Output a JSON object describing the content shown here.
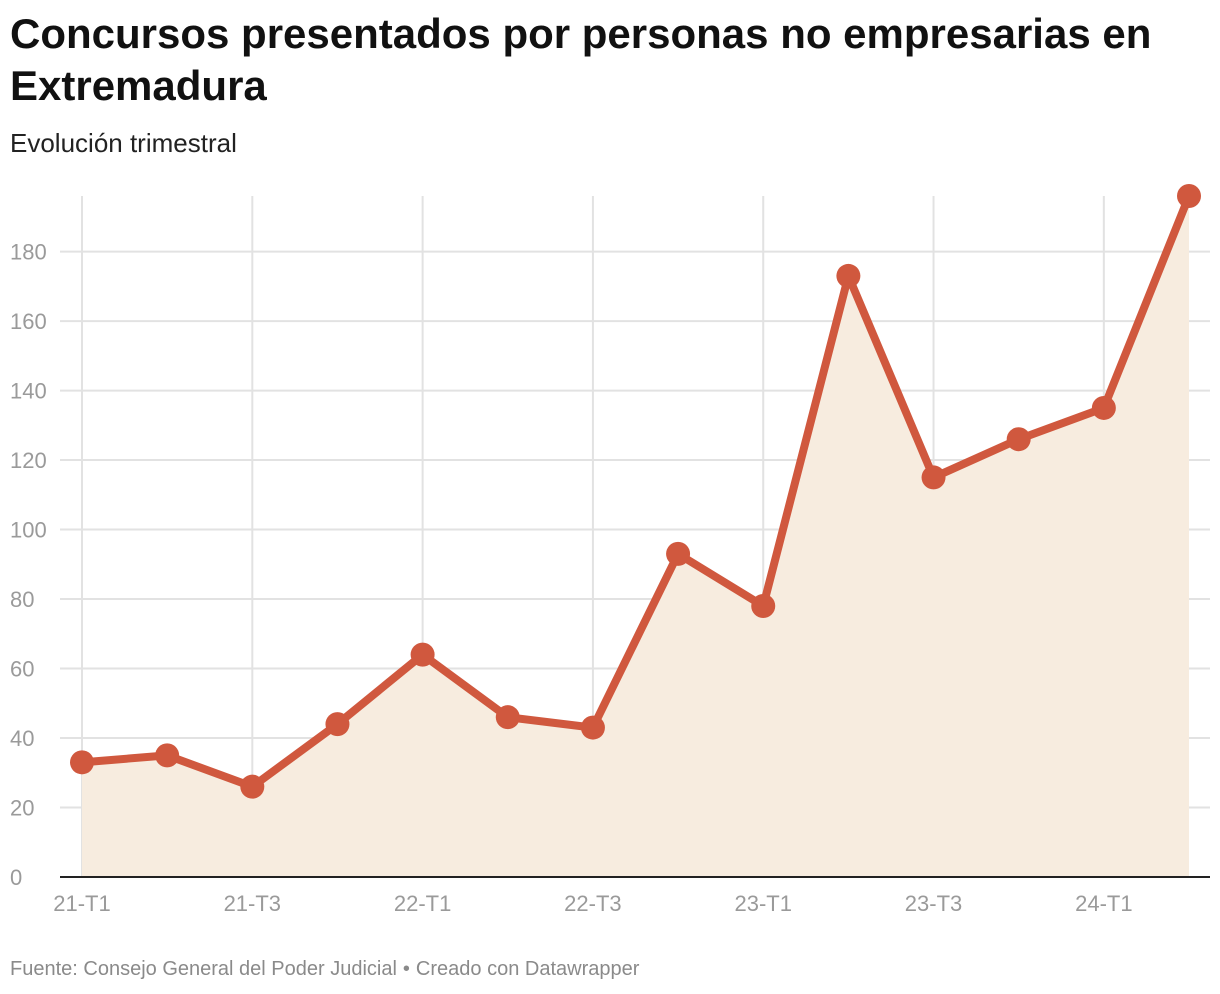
{
  "title": "Concursos presentados por personas no empresarias en Extremadura",
  "subtitle": "Evolución trimestral",
  "footer": {
    "source": "Fuente: Consejo General del Poder Judicial",
    "credit": "Creado con Datawrapper"
  },
  "colors": {
    "line": "#d0583e",
    "area": "#f7ecdf",
    "grid": "#e2e2e2",
    "axis": "#222222",
    "tick_text": "#9a9a9a"
  },
  "chart_data": {
    "type": "area",
    "title": "Concursos presentados por personas no empresarias en Extremadura",
    "subtitle": "Evolución trimestral",
    "x": [
      "21-T1",
      "21-T2",
      "21-T3",
      "21-T4",
      "22-T1",
      "22-T2",
      "22-T3",
      "22-T4",
      "23-T1",
      "23-T2",
      "23-T3",
      "23-T4",
      "24-T1",
      "24-T2"
    ],
    "series": [
      {
        "values": [
          33,
          35,
          26,
          44,
          64,
          46,
          43,
          93,
          78,
          173,
          115,
          126,
          135,
          196
        ]
      }
    ],
    "x_tick_labels": [
      "21-T1",
      "21-T3",
      "22-T1",
      "22-T3",
      "23-T1",
      "23-T3",
      "24-T1"
    ],
    "y_ticks": [
      0,
      20,
      40,
      60,
      80,
      100,
      120,
      140,
      160,
      180
    ],
    "ylim": [
      0,
      196
    ],
    "xlabel": "",
    "ylabel": "",
    "grid": true,
    "markers": true,
    "legend": "none"
  }
}
